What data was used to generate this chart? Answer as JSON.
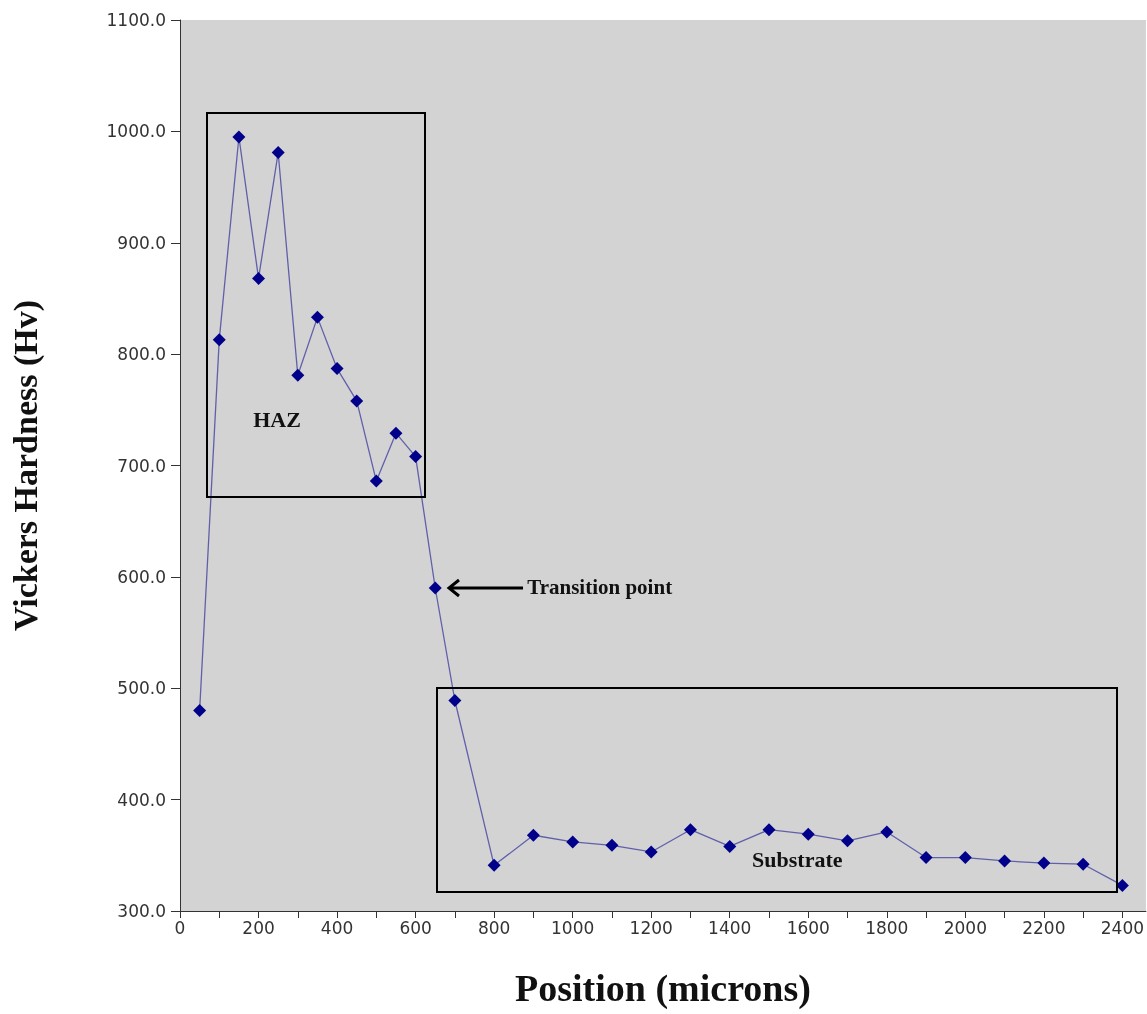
{
  "chart_data": {
    "type": "line",
    "xlabel": "Position (microns)",
    "ylabel": "Vickers Hardness (Hv)",
    "x": [
      50,
      100,
      150,
      200,
      250,
      300,
      350,
      400,
      450,
      500,
      550,
      600,
      650,
      700,
      800,
      900,
      1000,
      1100,
      1200,
      1300,
      1400,
      1500,
      1600,
      1700,
      1800,
      1900,
      2000,
      2100,
      2200,
      2300,
      2400
    ],
    "series": [
      {
        "color": "#00008b",
        "values": [
          480,
          813,
          995,
          868,
          981,
          781,
          833,
          787,
          758,
          686,
          729,
          708,
          590,
          489,
          341,
          368,
          362,
          359,
          353,
          373,
          358,
          373,
          369,
          363,
          371,
          348,
          348,
          345,
          343,
          342,
          323
        ]
      }
    ],
    "xlim": [
      0,
      2460
    ],
    "xticks": [
      0,
      {
        "value": 100,
        "label": null
      },
      200,
      {
        "value": 300,
        "label": null
      },
      400,
      {
        "value": 500,
        "label": null
      },
      600,
      {
        "value": 700,
        "label": null
      },
      800,
      {
        "value": 900,
        "label": null
      },
      1000,
      {
        "value": 1100,
        "label": null
      },
      1200,
      {
        "value": 1300,
        "label": null
      },
      1400,
      {
        "value": 1500,
        "label": null
      },
      1600,
      {
        "value": 1700,
        "label": null
      },
      1800,
      {
        "value": 1900,
        "label": null
      },
      2000,
      {
        "value": 2100,
        "label": null
      },
      2200,
      {
        "value": 2300,
        "label": null
      },
      2400
    ],
    "ylim": [
      300,
      1100
    ],
    "yticks": [
      {
        "value": 300,
        "label": "300.0"
      },
      {
        "value": 400,
        "label": "400.0"
      },
      {
        "value": 500,
        "label": "500.0"
      },
      {
        "value": 600,
        "label": "600.0"
      },
      {
        "value": 700,
        "label": "700.0"
      },
      {
        "value": 800,
        "label": "800.0"
      },
      {
        "value": 900,
        "label": "900.0"
      },
      {
        "value": 1000,
        "label": "1000.0"
      },
      {
        "value": 1100,
        "label": "1100.0"
      }
    ],
    "annotations": [
      "HAZ",
      "Transition point",
      "Substrate"
    ],
    "grid": false,
    "marker": "diamond",
    "line_style": "solid"
  }
}
